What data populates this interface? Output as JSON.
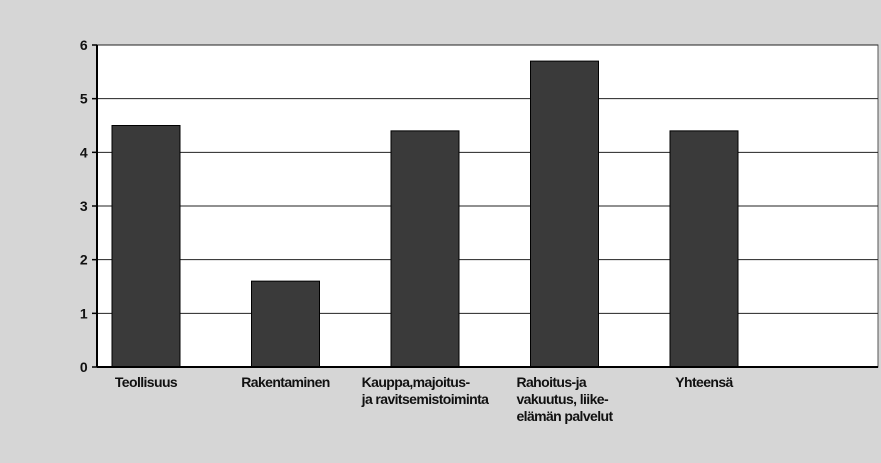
{
  "chart_data": {
    "type": "bar",
    "categories": [
      [
        "Teollisuus"
      ],
      [
        "Rakentaminen"
      ],
      [
        "Kauppa,majoitus-",
        "ja ravitsemistoiminta"
      ],
      [
        "Rahoitus-ja",
        "vakuutus, liike-",
        "elämän palvelut"
      ],
      [
        "Yhteensä"
      ]
    ],
    "values": [
      4.5,
      1.6,
      4.4,
      5.7,
      4.4
    ],
    "color": "#3a3a3a",
    "ylim": [
      0,
      6
    ],
    "yticks": [
      0,
      1,
      2,
      3,
      4,
      5,
      6
    ],
    "grid": true
  }
}
